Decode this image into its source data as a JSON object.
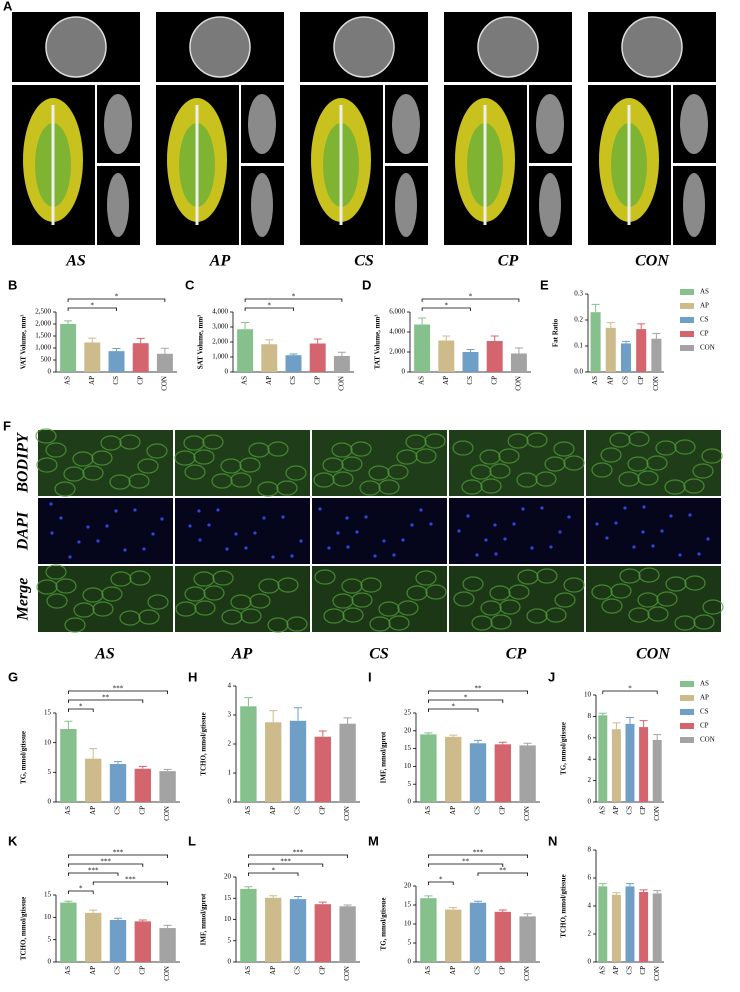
{
  "figure": {
    "panel_a": {
      "label": "A",
      "groups": [
        "AS",
        "AP",
        "CS",
        "CP",
        "CON"
      ]
    },
    "panel_f": {
      "label": "F",
      "stains": [
        "BODIPY",
        "DAPI",
        "Merge"
      ],
      "groups": [
        "AS",
        "AP",
        "CS",
        "CP",
        "CON"
      ]
    }
  },
  "chart_data": [
    {
      "type": "bar",
      "panel": "B",
      "ylabel": "VAT Volume, mm³",
      "categories": [
        "AS",
        "AP",
        "CS",
        "CP",
        "CON"
      ],
      "colors": [
        "#86c08c",
        "#cdbb8c",
        "#6f9fc6",
        "#d4646e",
        "#a3a3a3"
      ],
      "values": [
        2000,
        1230,
        870,
        1200,
        760
      ],
      "errors": [
        130,
        180,
        110,
        200,
        230
      ],
      "ylim": [
        0,
        2500
      ],
      "yticks": [
        0,
        500,
        {
          "value": 1000,
          "label": "1,000"
        },
        {
          "value": 1500,
          "label": "1,500"
        },
        {
          "value": 2000,
          "label": "2,000"
        },
        {
          "value": 2500,
          "label": "2,500"
        }
      ],
      "significance": [
        {
          "between": [
            "AS",
            "CS"
          ],
          "label": "*"
        },
        {
          "between": [
            "AS",
            "CON"
          ],
          "label": "*"
        }
      ]
    },
    {
      "type": "bar",
      "panel": "C",
      "ylabel": "SAT Volume, mm³",
      "categories": [
        "AS",
        "AP",
        "CS",
        "CP",
        "CON"
      ],
      "colors": [
        "#86c08c",
        "#cdbb8c",
        "#6f9fc6",
        "#d4646e",
        "#a3a3a3"
      ],
      "values": [
        2850,
        1850,
        1120,
        1900,
        1070
      ],
      "errors": [
        450,
        300,
        80,
        300,
        250
      ],
      "ylim": [
        0,
        4000
      ],
      "yticks": [
        0,
        {
          "value": 1000,
          "label": "1,000"
        },
        {
          "value": 2000,
          "label": "2,000"
        },
        {
          "value": 3000,
          "label": "3,000"
        },
        {
          "value": 4000,
          "label": "4,000"
        }
      ],
      "significance": [
        {
          "between": [
            "AS",
            "CS"
          ],
          "label": "*"
        },
        {
          "between": [
            "AS",
            "CON"
          ],
          "label": "*"
        }
      ]
    },
    {
      "type": "bar",
      "panel": "D",
      "ylabel": "TAT Volume, mm³",
      "categories": [
        "AS",
        "AP",
        "CS",
        "CP",
        "CON"
      ],
      "colors": [
        "#86c08c",
        "#cdbb8c",
        "#6f9fc6",
        "#d4646e",
        "#a3a3a3"
      ],
      "values": [
        4750,
        3150,
        2000,
        3100,
        1850
      ],
      "errors": [
        650,
        450,
        250,
        500,
        550
      ],
      "ylim": [
        0,
        6000
      ],
      "yticks": [
        0,
        {
          "value": 2000,
          "label": "2,000"
        },
        {
          "value": 4000,
          "label": "4,000"
        },
        {
          "value": 6000,
          "label": "6,000"
        }
      ],
      "significance": [
        {
          "between": [
            "AS",
            "CS"
          ],
          "label": "*"
        },
        {
          "between": [
            "AS",
            "CON"
          ],
          "label": "*"
        }
      ]
    },
    {
      "type": "bar",
      "panel": "E",
      "ylabel": "Fat Ratio",
      "categories": [
        "AS",
        "AP",
        "CS",
        "CP",
        "CON"
      ],
      "colors": [
        "#86c08c",
        "#cdbb8c",
        "#6f9fc6",
        "#d4646e",
        "#a3a3a3"
      ],
      "values": [
        0.23,
        0.17,
        0.11,
        0.165,
        0.128
      ],
      "errors": [
        0.03,
        0.02,
        0.008,
        0.02,
        0.02
      ],
      "ylim": [
        0,
        0.3
      ],
      "yticks": [
        {
          "value": 0,
          "label": "0.0"
        },
        0.1,
        0.2,
        0.3
      ],
      "legend": "right"
    },
    {
      "type": "bar",
      "panel": "G",
      "ylabel": "TG, mmol/gtissue",
      "categories": [
        "AS",
        "AP",
        "CS",
        "CP",
        "CON"
      ],
      "colors": [
        "#86c08c",
        "#cdbb8c",
        "#6f9fc6",
        "#d4646e",
        "#a3a3a3"
      ],
      "values": [
        12.3,
        7.3,
        6.4,
        5.6,
        5.2
      ],
      "errors": [
        1.3,
        1.7,
        0.4,
        0.4,
        0.3
      ],
      "ylim": [
        0,
        15
      ],
      "yticks": [
        0,
        5,
        10,
        15
      ],
      "significance": [
        {
          "between": [
            "AS",
            "AP"
          ],
          "label": "*"
        },
        {
          "between": [
            "AS",
            "CP"
          ],
          "label": "**"
        },
        {
          "between": [
            "AS",
            "CON"
          ],
          "label": "***"
        }
      ]
    },
    {
      "type": "bar",
      "panel": "H",
      "ylabel": "TCHO, mmol/gtissue",
      "categories": [
        "AS",
        "AP",
        "CS",
        "CP",
        "CON"
      ],
      "colors": [
        "#86c08c",
        "#cdbb8c",
        "#6f9fc6",
        "#d4646e",
        "#a3a3a3"
      ],
      "values": [
        3.3,
        2.75,
        2.8,
        2.25,
        2.7
      ],
      "errors": [
        0.3,
        0.4,
        0.45,
        0.2,
        0.2
      ],
      "ylim": [
        0,
        4
      ],
      "yticks": [
        0,
        1,
        2,
        3,
        4
      ]
    },
    {
      "type": "bar",
      "panel": "I",
      "ylabel": "IMF, mmol/gprot",
      "categories": [
        "AS",
        "AP",
        "CS",
        "CP",
        "CON"
      ],
      "colors": [
        "#86c08c",
        "#cdbb8c",
        "#6f9fc6",
        "#d4646e",
        "#a3a3a3"
      ],
      "values": [
        19,
        18.3,
        16.5,
        16.2,
        15.9
      ],
      "errors": [
        0.4,
        0.5,
        0.8,
        0.6,
        0.6
      ],
      "ylim": [
        0,
        25
      ],
      "yticks": [
        0,
        5,
        10,
        15,
        20,
        25
      ],
      "significance": [
        {
          "between": [
            "AS",
            "CS"
          ],
          "label": "*"
        },
        {
          "between": [
            "AS",
            "CP"
          ],
          "label": "*"
        },
        {
          "between": [
            "AS",
            "CON"
          ],
          "label": "**"
        }
      ]
    },
    {
      "type": "bar",
      "panel": "J",
      "ylabel": "TG, mmol/gtissue",
      "categories": [
        "AS",
        "AP",
        "CS",
        "CP",
        "CON"
      ],
      "colors": [
        "#86c08c",
        "#cdbb8c",
        "#6f9fc6",
        "#d4646e",
        "#a3a3a3"
      ],
      "values": [
        8.1,
        6.8,
        7.3,
        7,
        5.8
      ],
      "errors": [
        0.2,
        0.6,
        0.6,
        0.6,
        0.5
      ],
      "ylim": [
        0,
        10
      ],
      "yticks": [
        0,
        2,
        4,
        6,
        8,
        10
      ],
      "significance": [
        {
          "between": [
            "AS",
            "CON"
          ],
          "label": "*"
        }
      ],
      "legend": "right"
    },
    {
      "type": "bar",
      "panel": "K",
      "ylabel": "TCHO, mmol/gtissue",
      "categories": [
        "AS",
        "AP",
        "CS",
        "CP",
        "CON"
      ],
      "colors": [
        "#86c08c",
        "#cdbb8c",
        "#6f9fc6",
        "#d4646e",
        "#a3a3a3"
      ],
      "values": [
        13.3,
        11,
        9.4,
        9.1,
        7.6
      ],
      "errors": [
        0.3,
        0.6,
        0.4,
        0.3,
        0.6
      ],
      "ylim": [
        0,
        15
      ],
      "yticks": [
        0,
        5,
        10,
        15
      ],
      "significance": [
        {
          "between": [
            "AS",
            "AP"
          ],
          "label": "*"
        },
        {
          "between": [
            "AP",
            "CON"
          ],
          "label": "***"
        },
        {
          "between": [
            "AS",
            "CS"
          ],
          "label": "***"
        },
        {
          "between": [
            "AS",
            "CP"
          ],
          "label": "***"
        },
        {
          "between": [
            "AS",
            "CON"
          ],
          "label": "***"
        }
      ]
    },
    {
      "type": "bar",
      "panel": "L",
      "ylabel": "IMF, mmol/gprot",
      "categories": [
        "AS",
        "AP",
        "CS",
        "CP",
        "CON"
      ],
      "colors": [
        "#86c08c",
        "#cdbb8c",
        "#6f9fc6",
        "#d4646e",
        "#a3a3a3"
      ],
      "values": [
        17.2,
        15.1,
        14.8,
        13.6,
        13.1
      ],
      "errors": [
        0.5,
        0.5,
        0.6,
        0.5,
        0.3
      ],
      "ylim": [
        0,
        20
      ],
      "yticks": [
        0,
        5,
        10,
        15,
        20
      ],
      "significance": [
        {
          "between": [
            "AS",
            "CS"
          ],
          "label": "*"
        },
        {
          "between": [
            "AS",
            "CP"
          ],
          "label": "***"
        },
        {
          "between": [
            "AS",
            "CON"
          ],
          "label": "***"
        }
      ]
    },
    {
      "type": "bar",
      "panel": "M",
      "ylabel": "TG, mmol/gtissue",
      "categories": [
        "AS",
        "AP",
        "CS",
        "CP",
        "CON"
      ],
      "colors": [
        "#86c08c",
        "#cdbb8c",
        "#6f9fc6",
        "#d4646e",
        "#a3a3a3"
      ],
      "values": [
        16.8,
        13.8,
        15.6,
        13.2,
        12
      ],
      "errors": [
        0.6,
        0.5,
        0.4,
        0.5,
        0.7
      ],
      "ylim": [
        0,
        20
      ],
      "yticks": [
        0,
        5,
        10,
        15,
        20
      ],
      "significance": [
        {
          "between": [
            "AS",
            "AP"
          ],
          "label": "*"
        },
        {
          "between": [
            "CS",
            "CON"
          ],
          "label": "**"
        },
        {
          "between": [
            "AS",
            "CP"
          ],
          "label": "**"
        },
        {
          "between": [
            "AS",
            "CON"
          ],
          "label": "***"
        }
      ]
    },
    {
      "type": "bar",
      "panel": "N",
      "ylabel": "TCHO, mmol/gtissue",
      "categories": [
        "AS",
        "AP",
        "CS",
        "CP",
        "CON"
      ],
      "colors": [
        "#86c08c",
        "#cdbb8c",
        "#6f9fc6",
        "#d4646e",
        "#a3a3a3"
      ],
      "values": [
        5.4,
        4.8,
        5.4,
        5,
        4.9
      ],
      "errors": [
        0.2,
        0.15,
        0.2,
        0.15,
        0.2
      ],
      "ylim": [
        0,
        8
      ],
      "yticks": [
        0,
        2,
        4,
        6,
        8
      ]
    }
  ]
}
